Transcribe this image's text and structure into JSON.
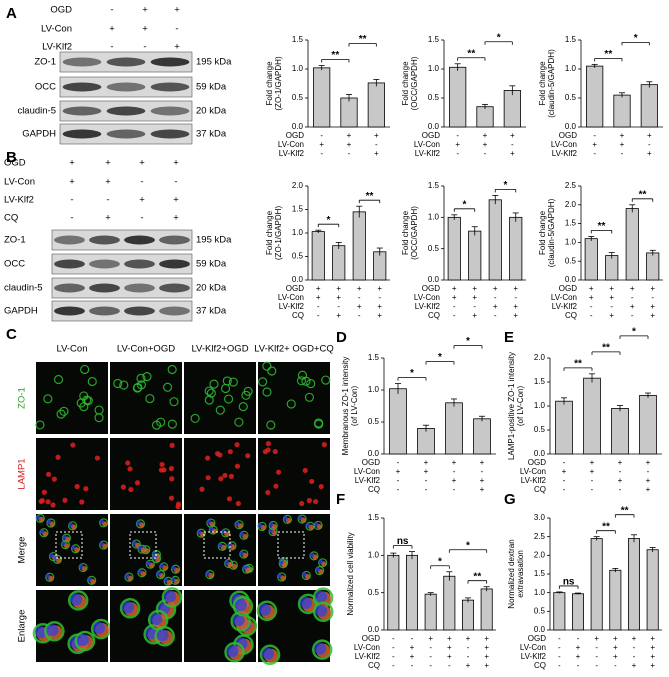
{
  "panel_labels": [
    "A",
    "B",
    "C",
    "D",
    "E",
    "F",
    "G"
  ],
  "blots": [
    {
      "conditions": [
        {
          "name": "OGD",
          "signs": [
            "-",
            "+",
            "+"
          ]
        },
        {
          "name": "LV-Con",
          "signs": [
            "+",
            "+",
            "-"
          ]
        },
        {
          "name": "LV-Klf2",
          "signs": [
            "-",
            "-",
            "+"
          ]
        }
      ],
      "bands": [
        {
          "name": "ZO-1",
          "size": "195 kDa"
        },
        {
          "name": "OCC",
          "size": "59 kDa"
        },
        {
          "name": "claudin-5",
          "size": "20 kDa"
        },
        {
          "name": "GAPDH",
          "size": "37 kDa"
        }
      ]
    },
    {
      "conditions": [
        {
          "name": "OGD",
          "signs": [
            "+",
            "+",
            "+",
            "+"
          ]
        },
        {
          "name": "LV-Con",
          "signs": [
            "+",
            "+",
            "-",
            "-"
          ]
        },
        {
          "name": "LV-Klf2",
          "signs": [
            "-",
            "-",
            "+",
            "+"
          ]
        },
        {
          "name": "CQ",
          "signs": [
            "-",
            "+",
            "-",
            "+"
          ]
        }
      ],
      "bands": [
        {
          "name": "ZO-1",
          "size": "195 kDa"
        },
        {
          "name": "OCC",
          "size": "59 kDa"
        },
        {
          "name": "claudin-5",
          "size": "20 kDa"
        },
        {
          "name": "GAPDH",
          "size": "37 kDa"
        }
      ]
    }
  ],
  "microscopy": {
    "columns": [
      "LV-Con",
      "LV-Con+OGD",
      "LV-Klf2+OGD",
      "LV-Klf2+ OGD+CQ"
    ],
    "rows": [
      {
        "name": "ZO-1",
        "color": "#2a9d2a"
      },
      {
        "name": "LAMP1",
        "color": "#d42020"
      },
      {
        "name": "Merge",
        "color": "#000000"
      },
      {
        "name": "Enlarge",
        "color": "#000000"
      }
    ]
  },
  "chart_data": [
    {
      "type": "bar",
      "ylabel": [
        "Fold change",
        "(ZO-1/GAPDH)"
      ],
      "color": "#c8c8c8",
      "values": [
        1.02,
        0.5,
        0.76
      ],
      "errors": [
        0.04,
        0.06,
        0.06
      ],
      "ylim": [
        0,
        1.5
      ],
      "yticks": [
        {
          "value": 0,
          "label": "0.0"
        },
        0.5,
        {
          "value": 1,
          "label": "1.0"
        },
        1.5
      ],
      "conditions": [
        {
          "name": "OGD",
          "signs": [
            "-",
            "+",
            "+"
          ]
        },
        {
          "name": "LV-Con",
          "signs": [
            "+",
            "+",
            "-"
          ]
        },
        {
          "name": "LV-Klf2",
          "signs": [
            "-",
            "-",
            "+"
          ]
        }
      ],
      "significance": [
        {
          "from": 0,
          "to": 1,
          "label": "**"
        },
        {
          "from": 1,
          "to": 2,
          "label": "**"
        }
      ]
    },
    {
      "type": "bar",
      "ylabel": [
        "Fold change",
        "(OCC/GAPDH)"
      ],
      "color": "#c8c8c8",
      "values": [
        1.03,
        0.35,
        0.63
      ],
      "errors": [
        0.06,
        0.04,
        0.08
      ],
      "ylim": [
        0,
        1.5
      ],
      "yticks": [
        {
          "value": 0,
          "label": "0.0"
        },
        0.5,
        {
          "value": 1,
          "label": "1.0"
        },
        1.5
      ],
      "conditions": [
        {
          "name": "OGD",
          "signs": [
            "-",
            "+",
            "+"
          ]
        },
        {
          "name": "LV-Con",
          "signs": [
            "+",
            "+",
            "-"
          ]
        },
        {
          "name": "LV-Klf2",
          "signs": [
            "-",
            "-",
            "+"
          ]
        }
      ],
      "significance": [
        {
          "from": 0,
          "to": 1,
          "label": "**"
        },
        {
          "from": 1,
          "to": 2,
          "label": "*"
        }
      ]
    },
    {
      "type": "bar",
      "ylabel": [
        "Fold change",
        "(claudin-5/GAPDH)"
      ],
      "color": "#c8c8c8",
      "values": [
        1.05,
        0.55,
        0.73
      ],
      "errors": [
        0.03,
        0.04,
        0.05
      ],
      "ylim": [
        0,
        1.5
      ],
      "yticks": [
        {
          "value": 0,
          "label": "0.0"
        },
        0.5,
        {
          "value": 1,
          "label": "1.0"
        },
        1.5
      ],
      "conditions": [
        {
          "name": "OGD",
          "signs": [
            "-",
            "+",
            "+"
          ]
        },
        {
          "name": "LV-Con",
          "signs": [
            "+",
            "+",
            "-"
          ]
        },
        {
          "name": "LV-Klf2",
          "signs": [
            "-",
            "-",
            "+"
          ]
        }
      ],
      "significance": [
        {
          "from": 0,
          "to": 1,
          "label": "**"
        },
        {
          "from": 1,
          "to": 2,
          "label": "*"
        }
      ]
    },
    {
      "type": "bar",
      "ylabel": [
        "Fold change",
        "(ZO-1/GAPDH)"
      ],
      "color": "#c8c8c8",
      "values": [
        1.03,
        0.73,
        1.45,
        0.6
      ],
      "errors": [
        0.03,
        0.07,
        0.12,
        0.08
      ],
      "ylim": [
        0,
        2
      ],
      "yticks": [
        {
          "value": 0,
          "label": "0.0"
        },
        0.5,
        {
          "value": 1,
          "label": "1.0"
        },
        1.5,
        {
          "value": 2,
          "label": "2.0"
        }
      ],
      "conditions": [
        {
          "name": "OGD",
          "signs": [
            "+",
            "+",
            "+",
            "+"
          ]
        },
        {
          "name": "LV-Con",
          "signs": [
            "+",
            "+",
            "-",
            "-"
          ]
        },
        {
          "name": "LV-Klf2",
          "signs": [
            "-",
            "-",
            "+",
            "+"
          ]
        },
        {
          "name": "CQ",
          "signs": [
            "-",
            "+",
            "-",
            "+"
          ]
        }
      ],
      "significance": [
        {
          "from": 0,
          "to": 1,
          "label": "*"
        },
        {
          "from": 2,
          "to": 3,
          "label": "**"
        }
      ]
    },
    {
      "type": "bar",
      "ylabel": [
        "Fold change",
        "(OCC/GAPDH)"
      ],
      "color": "#c8c8c8",
      "values": [
        1.0,
        0.78,
        1.28,
        1.0
      ],
      "errors": [
        0.04,
        0.07,
        0.07,
        0.07
      ],
      "ylim": [
        0,
        1.5
      ],
      "yticks": [
        {
          "value": 0,
          "label": "0.0"
        },
        0.5,
        {
          "value": 1,
          "label": "1.0"
        },
        1.5
      ],
      "conditions": [
        {
          "name": "OGD",
          "signs": [
            "+",
            "+",
            "+",
            "+"
          ]
        },
        {
          "name": "LV-Con",
          "signs": [
            "+",
            "+",
            "-",
            "-"
          ]
        },
        {
          "name": "LV-Klf2",
          "signs": [
            "-",
            "-",
            "+",
            "+"
          ]
        },
        {
          "name": "CQ",
          "signs": [
            "-",
            "+",
            "-",
            "+"
          ]
        }
      ],
      "significance": [
        {
          "from": 0,
          "to": 1,
          "label": "*"
        },
        {
          "from": 2,
          "to": 3,
          "label": "*"
        }
      ]
    },
    {
      "type": "bar",
      "ylabel": [
        "Fold change",
        "(claudin-5/GAPDH)"
      ],
      "color": "#c8c8c8",
      "values": [
        1.1,
        0.65,
        1.9,
        0.72
      ],
      "errors": [
        0.06,
        0.08,
        0.1,
        0.07
      ],
      "ylim": [
        0,
        2.5
      ],
      "yticks": [
        {
          "value": 0,
          "label": "0.0"
        },
        0.5,
        {
          "value": 1,
          "label": "1.0"
        },
        1.5,
        {
          "value": 2,
          "label": "2.0"
        },
        2.5
      ],
      "conditions": [
        {
          "name": "OGD",
          "signs": [
            "+",
            "+",
            "+",
            "+"
          ]
        },
        {
          "name": "LV-Con",
          "signs": [
            "+",
            "+",
            "-",
            "-"
          ]
        },
        {
          "name": "LV-Klf2",
          "signs": [
            "-",
            "-",
            "+",
            "+"
          ]
        },
        {
          "name": "CQ",
          "signs": [
            "-",
            "+",
            "-",
            "+"
          ]
        }
      ],
      "significance": [
        {
          "from": 0,
          "to": 1,
          "label": "**"
        },
        {
          "from": 2,
          "to": 3,
          "label": "**"
        }
      ]
    },
    {
      "type": "bar",
      "ylabel": [
        "Membranous ZO-1 intensity",
        "(of LV-Con)"
      ],
      "color": "#c8c8c8",
      "values": [
        1.02,
        0.4,
        0.8,
        0.55
      ],
      "errors": [
        0.08,
        0.05,
        0.06,
        0.04
      ],
      "ylim": [
        0,
        1.5
      ],
      "yticks": [
        {
          "value": 0,
          "label": "0.0"
        },
        0.5,
        {
          "value": 1,
          "label": "1.0"
        },
        1.5
      ],
      "conditions": [
        {
          "name": "OGD",
          "signs": [
            "-",
            "+",
            "+",
            "+"
          ]
        },
        {
          "name": "LV-Con",
          "signs": [
            "+",
            "+",
            "-",
            "-"
          ]
        },
        {
          "name": "LV-Klf2",
          "signs": [
            "-",
            "-",
            "+",
            "+"
          ]
        },
        {
          "name": "CQ",
          "signs": [
            "-",
            "-",
            "-",
            "+"
          ]
        }
      ],
      "significance": [
        {
          "from": 0,
          "to": 1,
          "label": "*"
        },
        {
          "from": 1,
          "to": 2,
          "label": "*"
        },
        {
          "from": 2,
          "to": 3,
          "label": "*"
        }
      ]
    },
    {
      "type": "bar",
      "ylabel": [
        "LAMP1-positive ZO-1 intensity",
        "(of LV-Con)"
      ],
      "color": "#c8c8c8",
      "values": [
        1.1,
        1.58,
        0.95,
        1.22
      ],
      "errors": [
        0.07,
        0.09,
        0.06,
        0.05
      ],
      "ylim": [
        0,
        2
      ],
      "yticks": [
        {
          "value": 0,
          "label": "0.0"
        },
        0.5,
        {
          "value": 1,
          "label": "1.0"
        },
        1.5,
        {
          "value": 2,
          "label": "2.0"
        }
      ],
      "conditions": [
        {
          "name": "OGD",
          "signs": [
            "-",
            "+",
            "+",
            "+"
          ]
        },
        {
          "name": "LV-Con",
          "signs": [
            "+",
            "+",
            "-",
            "-"
          ]
        },
        {
          "name": "LV-Klf2",
          "signs": [
            "-",
            "-",
            "+",
            "+"
          ]
        },
        {
          "name": "CQ",
          "signs": [
            "-",
            "-",
            "-",
            "+"
          ]
        }
      ],
      "significance": [
        {
          "from": 0,
          "to": 1,
          "label": "**"
        },
        {
          "from": 1,
          "to": 2,
          "label": "**"
        },
        {
          "from": 2,
          "to": 3,
          "label": "*"
        }
      ]
    },
    {
      "type": "bar",
      "ylabel": [
        "Normalized cell viability"
      ],
      "color": "#c8c8c8",
      "values": [
        1.0,
        1.0,
        0.48,
        0.72,
        0.4,
        0.55
      ],
      "errors": [
        0.03,
        0.05,
        0.02,
        0.06,
        0.03,
        0.03
      ],
      "ylim": [
        0,
        1.5
      ],
      "yticks": [
        {
          "value": 0,
          "label": "0.0"
        },
        0.5,
        {
          "value": 1,
          "label": "1.0"
        },
        1.5
      ],
      "conditions": [
        {
          "name": "OGD",
          "signs": [
            "-",
            "-",
            "+",
            "+",
            "+",
            "+"
          ]
        },
        {
          "name": "LV-Con",
          "signs": [
            "-",
            "+",
            "-",
            "+",
            "-",
            "+"
          ]
        },
        {
          "name": "LV-Klf2",
          "signs": [
            "-",
            "+",
            "-",
            "+",
            "-",
            "+"
          ]
        },
        {
          "name": "CQ",
          "signs": [
            "-",
            "-",
            "-",
            "-",
            "+",
            "+"
          ]
        }
      ],
      "significance": [
        {
          "from": 0,
          "to": 1,
          "label": "ns"
        },
        {
          "from": 2,
          "to": 3,
          "label": "*"
        },
        {
          "from": 4,
          "to": 5,
          "label": "**"
        },
        {
          "from": 3,
          "to": 5,
          "label": "*"
        }
      ]
    },
    {
      "type": "bar",
      "ylabel": [
        "Normalized dextran",
        "extravasation"
      ],
      "color": "#c8c8c8",
      "values": [
        1.0,
        0.97,
        2.45,
        1.6,
        2.45,
        2.15
      ],
      "errors": [
        0.02,
        0.02,
        0.05,
        0.05,
        0.1,
        0.06
      ],
      "ylim": [
        0,
        3
      ],
      "yticks": [
        {
          "value": 0,
          "label": "0.0"
        },
        0.5,
        {
          "value": 1,
          "label": "1.0"
        },
        1.5,
        {
          "value": 2,
          "label": "2.0"
        },
        2.5,
        {
          "value": 3,
          "label": "3.0"
        }
      ],
      "conditions": [
        {
          "name": "OGD",
          "signs": [
            "-",
            "-",
            "+",
            "+",
            "+",
            "+"
          ]
        },
        {
          "name": "LV-Con",
          "signs": [
            "-",
            "+",
            "-",
            "+",
            "-",
            "+"
          ]
        },
        {
          "name": "LV-Klf2",
          "signs": [
            "-",
            "+",
            "-",
            "+",
            "-",
            "+"
          ]
        },
        {
          "name": "CQ",
          "signs": [
            "-",
            "-",
            "-",
            "-",
            "+",
            "+"
          ]
        }
      ],
      "significance": [
        {
          "from": 0,
          "to": 1,
          "label": "ns"
        },
        {
          "from": 2,
          "to": 3,
          "label": "**"
        },
        {
          "from": 3,
          "to": 4,
          "label": "**"
        }
      ]
    }
  ]
}
